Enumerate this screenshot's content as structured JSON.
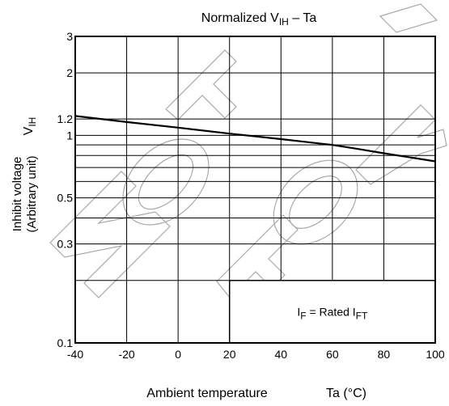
{
  "chart_data": {
    "type": "line",
    "title": {
      "main": "Normalized V",
      "sub": "IH",
      "suffix": " – Ta"
    },
    "xlabel": {
      "main": "Ambient temperature",
      "symbol": "Ta (°C)"
    },
    "ylabel": {
      "line1": "Inhibit voltage",
      "line2": "(Arbitrary unit)",
      "symbol_main": "V",
      "symbol_sub": "IH"
    },
    "x_scale": "linear",
    "y_scale": "log",
    "xlim": [
      -40,
      100
    ],
    "ylim": [
      0.1,
      3
    ],
    "x_ticks": [
      -40,
      -20,
      0,
      20,
      40,
      60,
      80,
      100
    ],
    "x_tick_labels": [
      "-40",
      "-20",
      "0",
      "20",
      "40",
      "60",
      "80",
      "100"
    ],
    "y_tick_labels": [
      {
        "value": 0.1,
        "label": "0.1"
      },
      {
        "value": 0.3,
        "label": "0.3"
      },
      {
        "value": 0.5,
        "label": "0.5"
      },
      {
        "value": 1,
        "label": "1"
      },
      {
        "value": 1.2,
        "label": "1.2"
      },
      {
        "value": 2,
        "label": "2"
      },
      {
        "value": 3,
        "label": "3"
      }
    ],
    "y_gridlines": [
      0.2,
      0.3,
      0.4,
      0.5,
      0.6,
      0.7,
      0.8,
      0.9,
      1,
      1.2,
      2,
      3
    ],
    "grid": true,
    "series": [
      {
        "x": [
          -40,
          -20,
          0,
          20,
          40,
          60,
          70,
          80,
          100
        ],
        "y": [
          1.24,
          1.16,
          1.09,
          1.02,
          0.96,
          0.9,
          0.86,
          0.82,
          0.75
        ]
      }
    ],
    "annotation": {
      "text1": "I",
      "sub1": "F",
      "text2": " = Rated I",
      "sub2": "FT",
      "box_x": [
        20,
        100
      ],
      "box_y": [
        0.1,
        0.2
      ]
    },
    "watermark": "Not for New Design"
  }
}
